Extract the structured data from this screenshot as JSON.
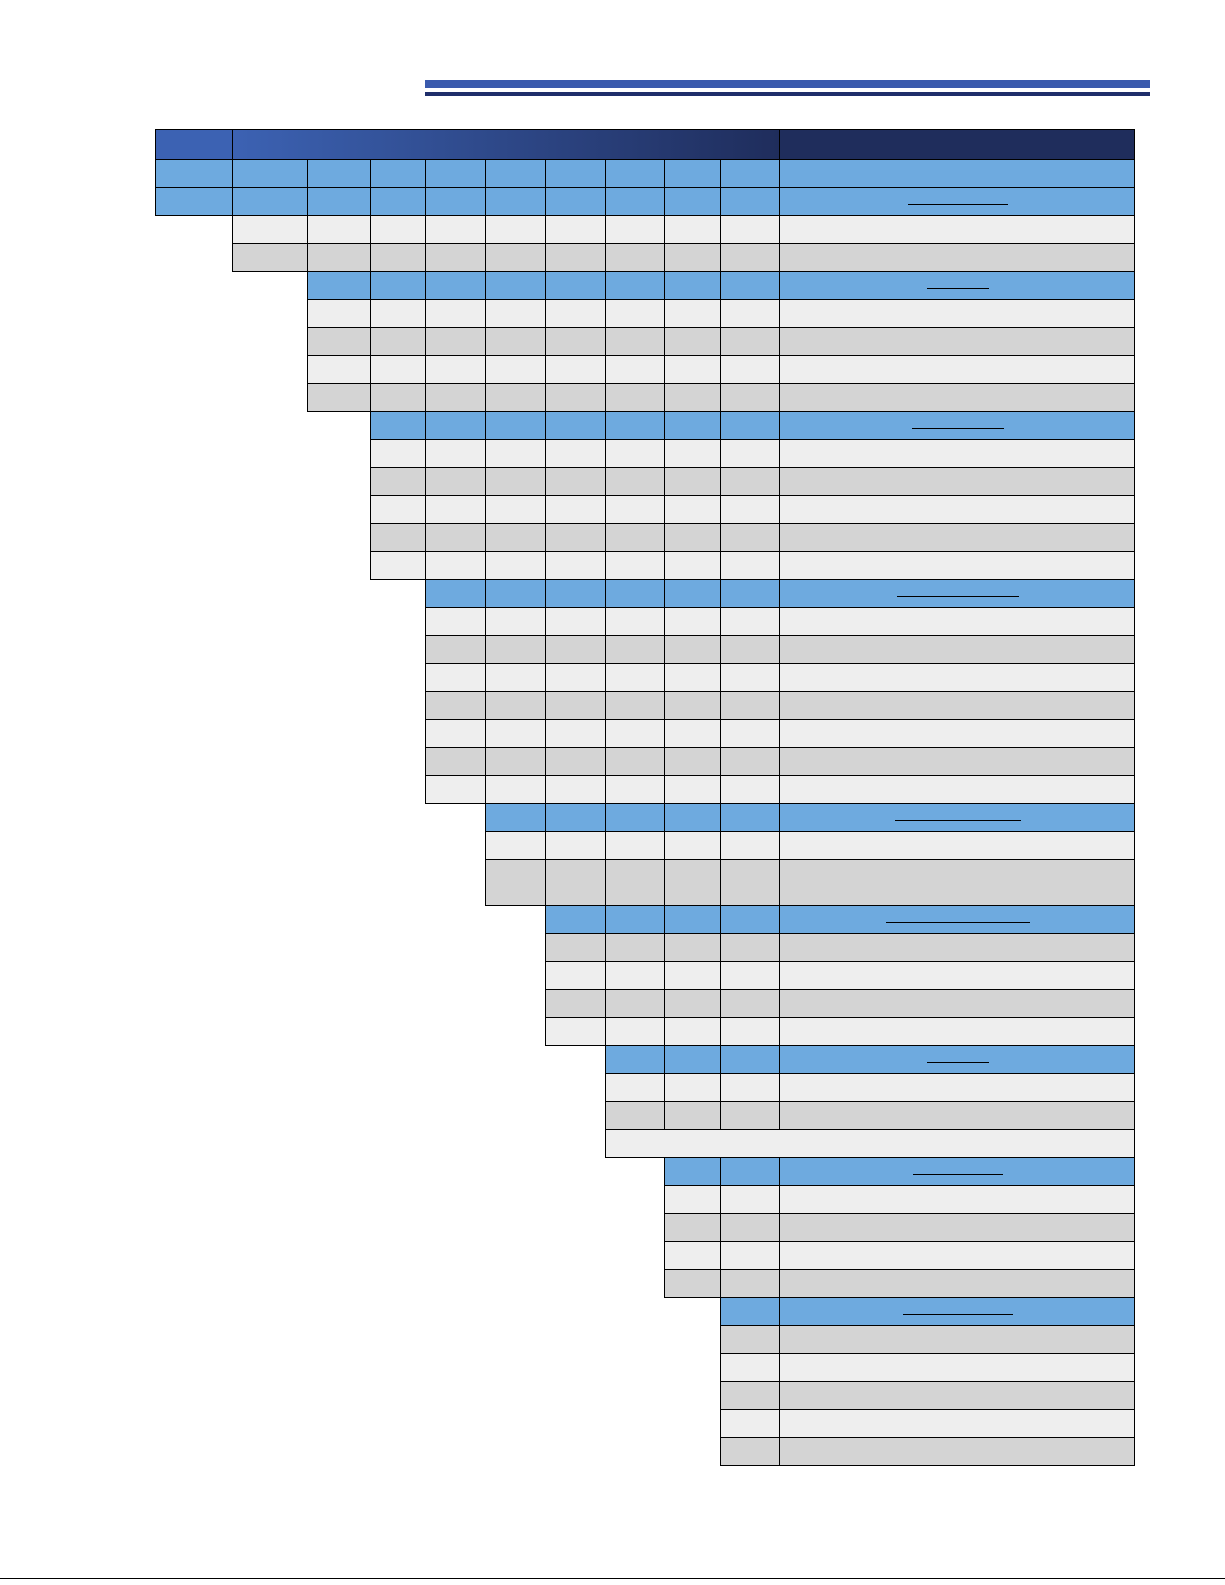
{
  "colors": {
    "accent_mid": "#3a5aad",
    "accent_dark": "#1f2e6b",
    "header_gradient_start": "#3c62b3",
    "header_gradient_end": "#1f2d5c",
    "section_blue": "#6eaadf",
    "row_light": "#eeeeee",
    "row_dark": "#d4d4d4",
    "border": "#000000"
  },
  "document": {
    "header_text": "",
    "sections": [
      {
        "name": "section-1",
        "heading": "",
        "row_count": 2
      },
      {
        "name": "section-2",
        "heading": "",
        "row_count": 4
      },
      {
        "name": "section-3",
        "heading": "",
        "row_count": 5
      },
      {
        "name": "section-4",
        "heading": "",
        "row_count": 7
      },
      {
        "name": "section-5",
        "heading": "",
        "row_count": 2
      },
      {
        "name": "section-6",
        "heading": "",
        "row_count": 4
      },
      {
        "name": "section-7",
        "heading": "",
        "row_count": 2
      },
      {
        "name": "section-8",
        "heading": "",
        "row_count": 4
      },
      {
        "name": "section-9",
        "heading": "",
        "row_count": 5
      }
    ]
  }
}
